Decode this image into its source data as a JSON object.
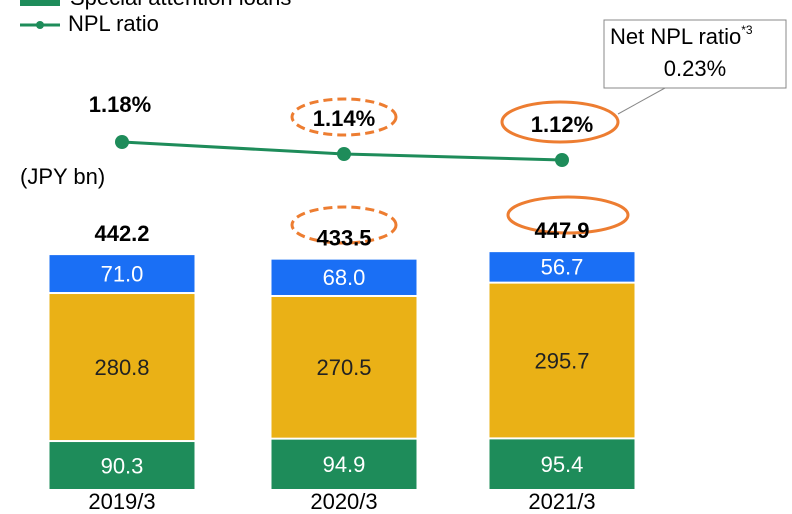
{
  "chart_data": {
    "type": "bar",
    "categories": [
      "2019/3",
      "2020/3",
      "2021/3"
    ],
    "unit_label": "(JPY bn)",
    "series": [
      {
        "name": "Special attention loans",
        "color": "#1e8c5a",
        "values": [
          90.3,
          94.9,
          95.4
        ]
      },
      {
        "color": "#eab116",
        "values": [
          280.8,
          270.5,
          295.7
        ]
      },
      {
        "color": "#1a6ff5",
        "values": [
          71.0,
          68.0,
          56.7
        ],
        "value_labels": [
          "71.0",
          "68.0",
          "56.7"
        ]
      }
    ],
    "totals": [
      442.2,
      433.5,
      447.9
    ],
    "line": {
      "type": "line",
      "name": "NPL ratio",
      "color": "#1e8c5a",
      "values": [
        1.18,
        1.14,
        1.12
      ],
      "value_labels": [
        "1.18%",
        "1.14%",
        "1.12%"
      ]
    },
    "annotation": {
      "title": "Net NPL ratio",
      "superscript": "*3",
      "text": "0.23%"
    }
  }
}
